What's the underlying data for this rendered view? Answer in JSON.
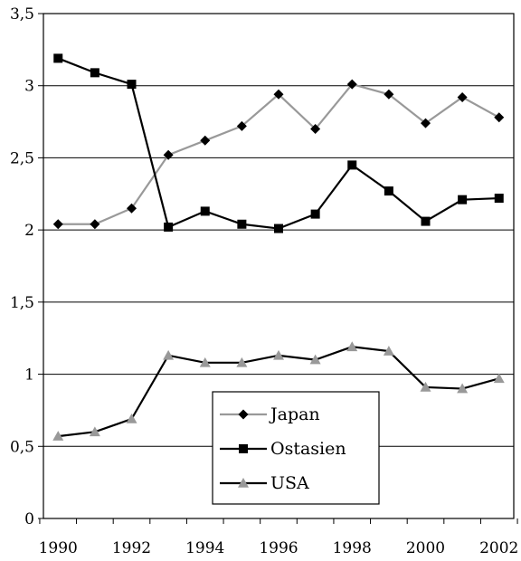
{
  "chart_data": {
    "type": "line",
    "title": "",
    "xlabel": "",
    "ylabel": "",
    "x": [
      1990,
      1991,
      1992,
      1993,
      1994,
      1995,
      1996,
      1997,
      1998,
      1999,
      2000,
      2001,
      2002
    ],
    "x_tick_labels": [
      "1990",
      "1992",
      "1994",
      "1996",
      "1998",
      "2000",
      "2002"
    ],
    "x_tick_values": [
      1990,
      1992,
      1994,
      1996,
      1998,
      2000,
      2002
    ],
    "y_tick_labels": [
      "0",
      "0,5",
      "1",
      "1,5",
      "2",
      "2,5",
      "3",
      "3,5"
    ],
    "y_tick_values": [
      0,
      0.5,
      1,
      1.5,
      2,
      2.5,
      3,
      3.5
    ],
    "ylim": [
      0,
      3.5
    ],
    "xlim": [
      1989.6,
      2002.4
    ],
    "grid": "horizontal",
    "legend_position": "center-bottom",
    "series": [
      {
        "name": "Japan",
        "marker": "diamond",
        "line_color": "#999999",
        "marker_color": "#000000",
        "values": [
          2.04,
          2.04,
          2.15,
          2.52,
          2.62,
          2.72,
          2.94,
          2.7,
          3.01,
          2.94,
          2.74,
          2.92,
          2.78
        ]
      },
      {
        "name": "Ostasien",
        "marker": "square",
        "line_color": "#000000",
        "marker_color": "#000000",
        "values": [
          3.19,
          3.09,
          3.01,
          2.02,
          2.13,
          2.04,
          2.01,
          2.11,
          2.45,
          2.27,
          2.06,
          2.21,
          2.22
        ]
      },
      {
        "name": "USA",
        "marker": "triangle",
        "line_color": "#000000",
        "marker_color": "#999999",
        "values": [
          0.57,
          0.6,
          0.69,
          1.13,
          1.08,
          1.08,
          1.13,
          1.1,
          1.19,
          1.16,
          0.91,
          0.9,
          0.97
        ]
      }
    ]
  }
}
